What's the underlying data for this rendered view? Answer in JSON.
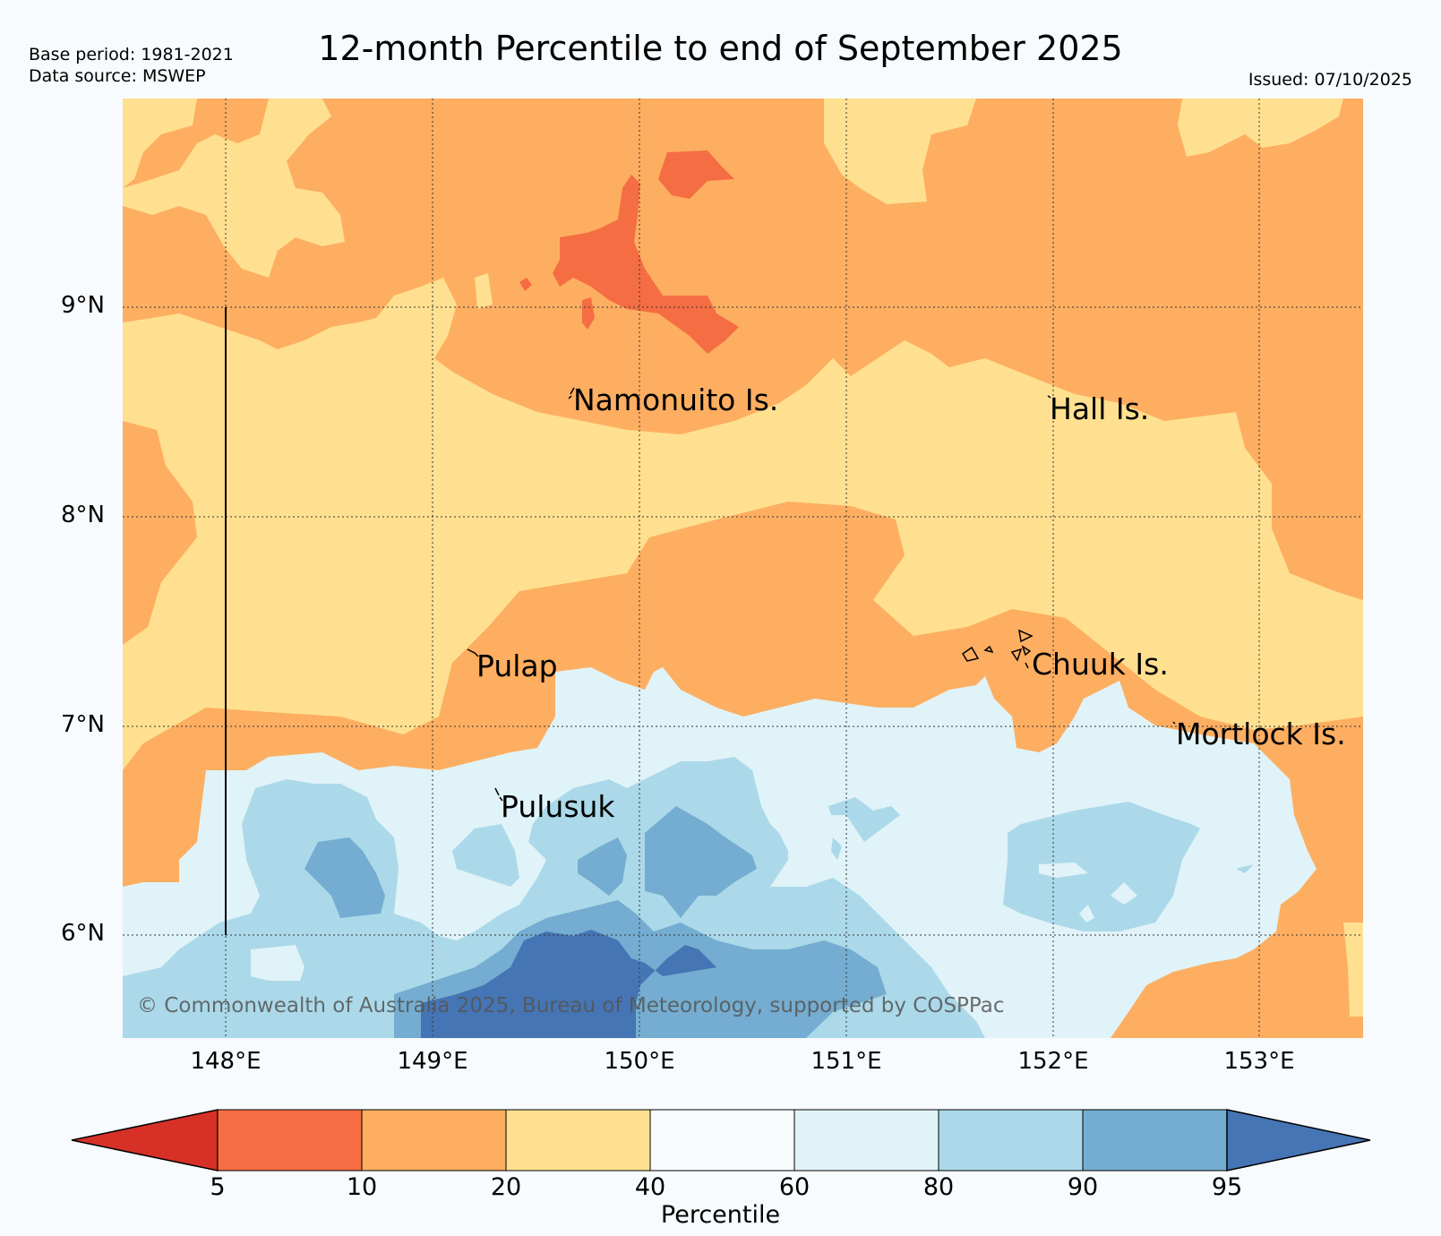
{
  "title": "12-month Percentile to end of September 2025",
  "meta": {
    "base_period": "Base period: 1981-2021",
    "data_source": "Data source: MSWEP",
    "issued": "Issued: 07/10/2025"
  },
  "axes": {
    "lat_labels": [
      "9°N",
      "8°N",
      "7°N",
      "6°N"
    ],
    "lon_labels": [
      "148°E",
      "149°E",
      "150°E",
      "151°E",
      "152°E",
      "153°E"
    ]
  },
  "places": {
    "namonuito": "Namonuito Is.",
    "hall": "Hall Is.",
    "pulap": "Pulap",
    "chuuk": "Chuuk Is.",
    "mortlock": "Mortlock Is.",
    "pulusuk": "Pulusuk"
  },
  "copyright": "© Commonwealth of Australia 2025, Bureau of Meteorology, supported by COSPPac",
  "colorbar": {
    "label": "Percentile",
    "ticks": [
      "5",
      "10",
      "20",
      "40",
      "60",
      "80",
      "90",
      "95"
    ],
    "colors": {
      "below5": "#d73027",
      "p5_10": "#f46d43",
      "p10_20": "#fdae61",
      "p20_40": "#fee090",
      "p40_60": "#f7fbfd",
      "p60_80": "#e0f3f8",
      "p80_90": "#abd9e9",
      "p90_95": "#74add1",
      "above95": "#4575b4"
    }
  }
}
